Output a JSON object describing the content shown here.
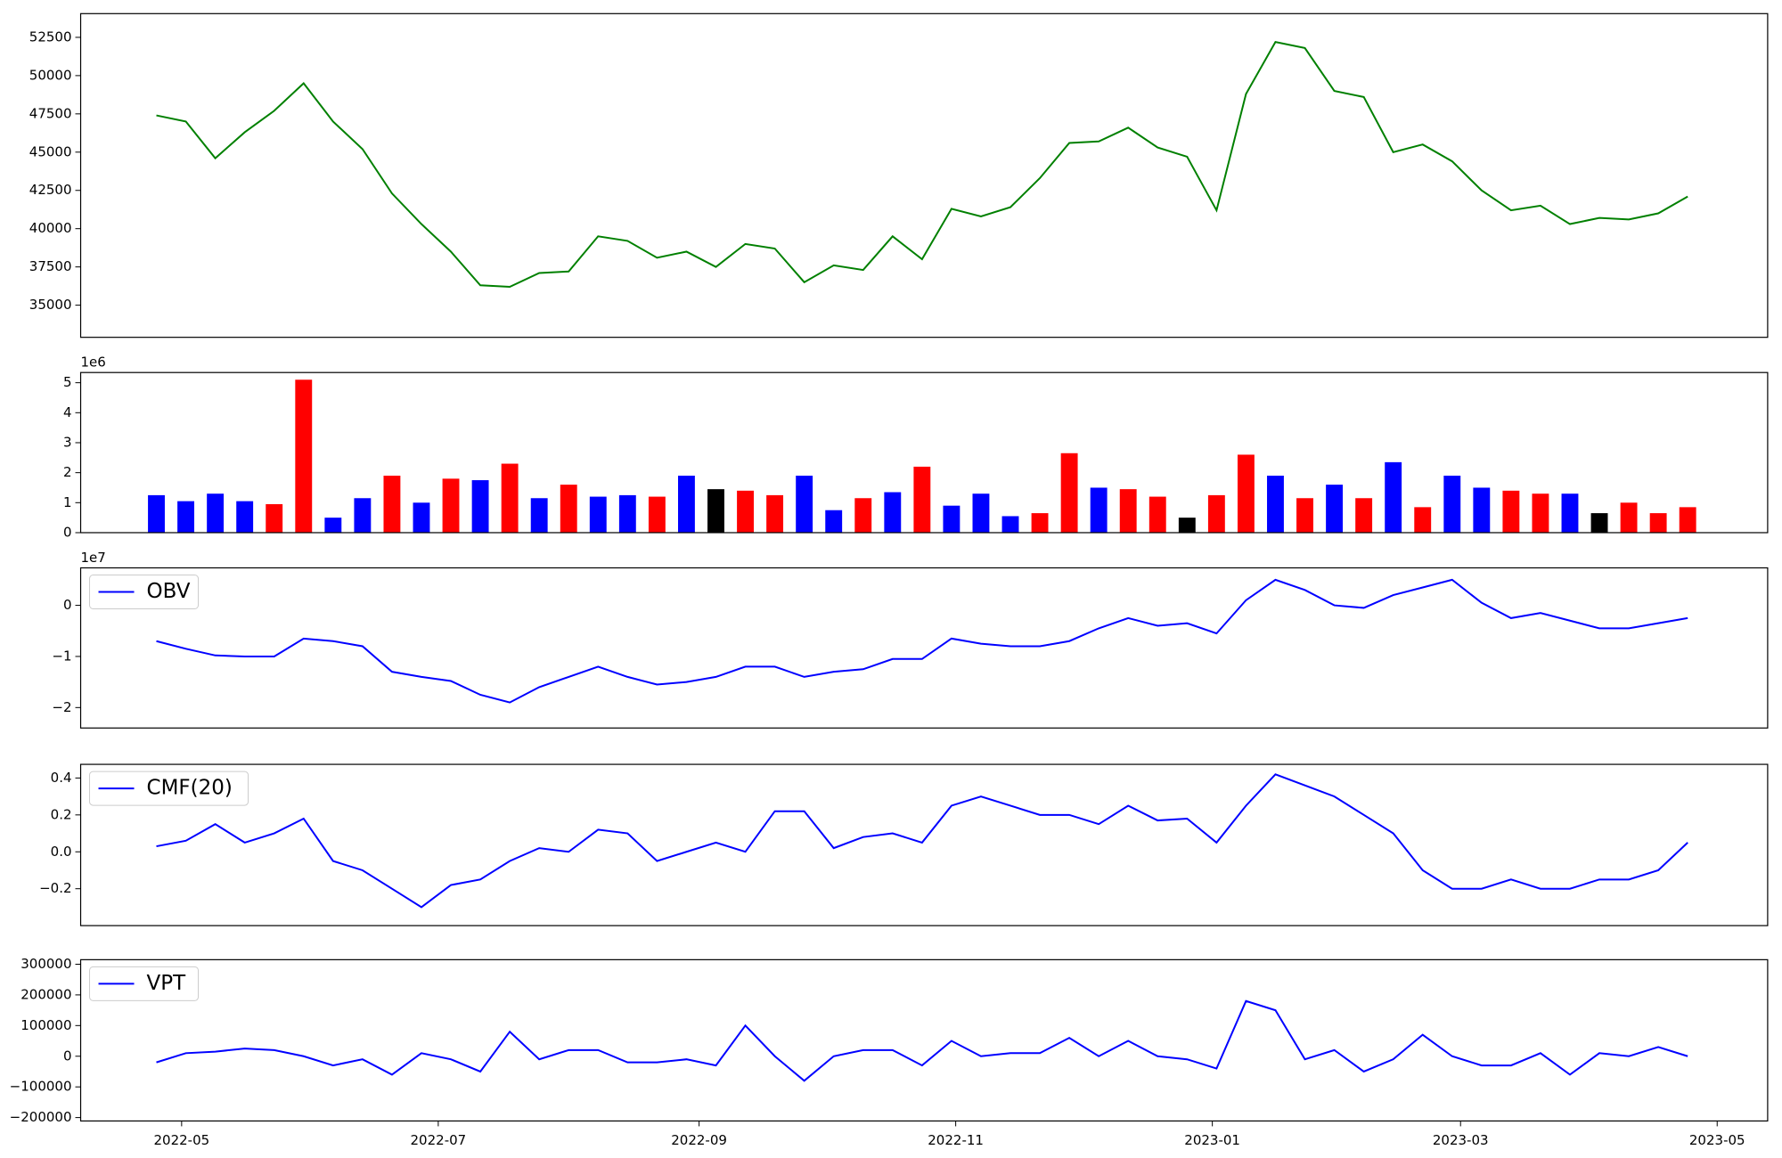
{
  "chart_data": [
    {
      "type": "line",
      "color": "#008000",
      "x": [
        "2022-04-25",
        "2022-05-02",
        "2022-05-09",
        "2022-05-16",
        "2022-05-23",
        "2022-05-30",
        "2022-06-06",
        "2022-06-13",
        "2022-06-20",
        "2022-06-27",
        "2022-07-04",
        "2022-07-11",
        "2022-07-18",
        "2022-07-25",
        "2022-08-01",
        "2022-08-08",
        "2022-08-15",
        "2022-08-22",
        "2022-08-29",
        "2022-09-05",
        "2022-09-12",
        "2022-09-19",
        "2022-09-26",
        "2022-10-03",
        "2022-10-10",
        "2022-10-17",
        "2022-10-24",
        "2022-10-31",
        "2022-11-07",
        "2022-11-14",
        "2022-11-21",
        "2022-11-28",
        "2022-12-05",
        "2022-12-12",
        "2022-12-19",
        "2022-12-26",
        "2023-01-02",
        "2023-01-09",
        "2023-01-16",
        "2023-01-23",
        "2023-01-30",
        "2023-02-06",
        "2023-02-13",
        "2023-02-20",
        "2023-02-27",
        "2023-03-06",
        "2023-03-13",
        "2023-03-20",
        "2023-03-27",
        "2023-04-03",
        "2023-04-10",
        "2023-04-17",
        "2023-04-24"
      ],
      "values": [
        47400,
        47000,
        44600,
        46300,
        47700,
        49500,
        47000,
        45200,
        42300,
        40300,
        38500,
        36300,
        36200,
        37100,
        37200,
        39500,
        39200,
        38100,
        38500,
        37500,
        39000,
        38700,
        36500,
        37600,
        37300,
        39500,
        38000,
        41300,
        40800,
        41400,
        43300,
        45600,
        45700,
        46600,
        45300,
        44700,
        41200,
        48800,
        52200,
        51800,
        49000,
        48600,
        45000,
        45500,
        44400,
        42500,
        41200,
        41500,
        40300,
        40700,
        40600,
        41000,
        42100
      ],
      "xlim": [
        "2022-04-07",
        "2023-05-13"
      ],
      "ylim": [
        32900,
        54050
      ],
      "yticks": [
        35000,
        37500,
        40000,
        42500,
        45000,
        47500,
        50000,
        52500
      ]
    },
    {
      "type": "bar",
      "offset_label": "1e6",
      "x": [
        "2022-04-25",
        "2022-05-02",
        "2022-05-09",
        "2022-05-16",
        "2022-05-23",
        "2022-05-30",
        "2022-06-06",
        "2022-06-13",
        "2022-06-20",
        "2022-06-27",
        "2022-07-04",
        "2022-07-11",
        "2022-07-18",
        "2022-07-25",
        "2022-08-01",
        "2022-08-08",
        "2022-08-15",
        "2022-08-22",
        "2022-08-29",
        "2022-09-05",
        "2022-09-12",
        "2022-09-19",
        "2022-09-26",
        "2022-10-03",
        "2022-10-10",
        "2022-10-17",
        "2022-10-24",
        "2022-10-31",
        "2022-11-07",
        "2022-11-14",
        "2022-11-21",
        "2022-11-28",
        "2022-12-05",
        "2022-12-12",
        "2022-12-19",
        "2022-12-26",
        "2023-01-02",
        "2023-01-09",
        "2023-01-16",
        "2023-01-23",
        "2023-01-30",
        "2023-02-06",
        "2023-02-13",
        "2023-02-20",
        "2023-02-27",
        "2023-03-06",
        "2023-03-13",
        "2023-03-20",
        "2023-03-27",
        "2023-04-03",
        "2023-04-10",
        "2023-04-17",
        "2023-04-24"
      ],
      "values": [
        1250000,
        1050000,
        1300000,
        1050000,
        950000,
        5100000,
        500000,
        1150000,
        1900000,
        1000000,
        1800000,
        1750000,
        2300000,
        1150000,
        1600000,
        1200000,
        1250000,
        1200000,
        1900000,
        1450000,
        1400000,
        1250000,
        1900000,
        750000,
        1150000,
        1350000,
        2200000,
        900000,
        1300000,
        550000,
        650000,
        2650000,
        1500000,
        1450000,
        1200000,
        500000,
        1250000,
        2600000,
        1900000,
        1150000,
        1600000,
        1150000,
        2350000,
        850000,
        1900000,
        1500000,
        1400000,
        1300000,
        1300000,
        650000,
        1000000,
        650000,
        850000
      ],
      "colors": [
        "blue",
        "blue",
        "blue",
        "blue",
        "red",
        "red",
        "blue",
        "blue",
        "red",
        "blue",
        "red",
        "blue",
        "red",
        "blue",
        "red",
        "blue",
        "blue",
        "red",
        "blue",
        "black",
        "red",
        "red",
        "blue",
        "blue",
        "red",
        "blue",
        "red",
        "blue",
        "blue",
        "blue",
        "red",
        "red",
        "blue",
        "red",
        "red",
        "black",
        "red",
        "red",
        "blue",
        "red",
        "blue",
        "red",
        "blue",
        "red",
        "blue",
        "blue",
        "red",
        "red",
        "blue",
        "black",
        "red",
        "red",
        "red"
      ],
      "xlim": [
        "2022-04-07",
        "2023-05-13"
      ],
      "ylim": [
        0,
        5340000
      ],
      "yticks": [
        0,
        {
          "value": 1000000,
          "label": "1"
        },
        {
          "value": 2000000,
          "label": "2"
        },
        {
          "value": 3000000,
          "label": "3"
        },
        {
          "value": 4000000,
          "label": "4"
        },
        {
          "value": 5000000,
          "label": "5"
        }
      ]
    },
    {
      "type": "line",
      "offset_label": "1e7",
      "legend": "upper left",
      "x": [
        "2022-04-25",
        "2022-05-02",
        "2022-05-09",
        "2022-05-16",
        "2022-05-23",
        "2022-05-30",
        "2022-06-06",
        "2022-06-13",
        "2022-06-20",
        "2022-06-27",
        "2022-07-04",
        "2022-07-11",
        "2022-07-18",
        "2022-07-25",
        "2022-08-01",
        "2022-08-08",
        "2022-08-15",
        "2022-08-22",
        "2022-08-29",
        "2022-09-05",
        "2022-09-12",
        "2022-09-19",
        "2022-09-26",
        "2022-10-03",
        "2022-10-10",
        "2022-10-17",
        "2022-10-24",
        "2022-10-31",
        "2022-11-07",
        "2022-11-14",
        "2022-11-21",
        "2022-11-28",
        "2022-12-05",
        "2022-12-12",
        "2022-12-19",
        "2022-12-26",
        "2023-01-02",
        "2023-01-09",
        "2023-01-16",
        "2023-01-23",
        "2023-01-30",
        "2023-02-06",
        "2023-02-13",
        "2023-02-20",
        "2023-02-27",
        "2023-03-06",
        "2023-03-13",
        "2023-03-20",
        "2023-03-27",
        "2023-04-03",
        "2023-04-10",
        "2023-04-17",
        "2023-04-24"
      ],
      "series": [
        {
          "name": "OBV",
          "color": "#0000ff",
          "values": [
            -7000000,
            -8500000,
            -9800000,
            -10000000,
            -10000000,
            -6500000,
            -7000000,
            -8000000,
            -13000000,
            -14000000,
            -14800000,
            -17500000,
            -19000000,
            -16000000,
            -14000000,
            -12000000,
            -14000000,
            -15500000,
            -15000000,
            -14000000,
            -12000000,
            -12000000,
            -14000000,
            -13000000,
            -12500000,
            -10500000,
            -10500000,
            -6500000,
            -7500000,
            -8000000,
            -8000000,
            -7000000,
            -4500000,
            -2500000,
            -4000000,
            -3500000,
            -5500000,
            1000000,
            5000000,
            3000000,
            0,
            -500000,
            2000000,
            3500000,
            5000000,
            500000,
            -2500000,
            -1500000,
            -3000000,
            -4500000,
            -4500000,
            -3500000,
            -2500000
          ]
        }
      ],
      "xlim": [
        "2022-04-07",
        "2023-05-13"
      ],
      "ylim": [
        -24000000,
        7330000
      ],
      "yticks": [
        {
          "value": -20000000,
          "label": "−2"
        },
        {
          "value": -10000000,
          "label": "−1"
        },
        0
      ]
    },
    {
      "type": "line",
      "legend": "upper left",
      "x": [
        "2022-04-25",
        "2022-05-02",
        "2022-05-09",
        "2022-05-16",
        "2022-05-23",
        "2022-05-30",
        "2022-06-06",
        "2022-06-13",
        "2022-06-20",
        "2022-06-27",
        "2022-07-04",
        "2022-07-11",
        "2022-07-18",
        "2022-07-25",
        "2022-08-01",
        "2022-08-08",
        "2022-08-15",
        "2022-08-22",
        "2022-08-29",
        "2022-09-05",
        "2022-09-12",
        "2022-09-19",
        "2022-09-26",
        "2022-10-03",
        "2022-10-10",
        "2022-10-17",
        "2022-10-24",
        "2022-10-31",
        "2022-11-07",
        "2022-11-14",
        "2022-11-21",
        "2022-11-28",
        "2022-12-05",
        "2022-12-12",
        "2022-12-19",
        "2022-12-26",
        "2023-01-02",
        "2023-01-09",
        "2023-01-16",
        "2023-01-23",
        "2023-01-30",
        "2023-02-06",
        "2023-02-13",
        "2023-02-20",
        "2023-02-27",
        "2023-03-06",
        "2023-03-13",
        "2023-03-20",
        "2023-03-27",
        "2023-04-03",
        "2023-04-10",
        "2023-04-17",
        "2023-04-24"
      ],
      "series": [
        {
          "name": "CMF(20)",
          "color": "#0000ff",
          "values": [
            0.03,
            0.06,
            0.15,
            0.05,
            0.1,
            0.18,
            -0.05,
            -0.1,
            -0.2,
            -0.3,
            -0.18,
            -0.15,
            -0.05,
            0.02,
            0.0,
            0.12,
            0.1,
            -0.05,
            0.0,
            0.05,
            0.0,
            0.22,
            0.22,
            0.02,
            0.08,
            0.1,
            0.05,
            0.25,
            0.3,
            0.25,
            0.2,
            0.2,
            0.15,
            0.25,
            0.17,
            0.18,
            0.05,
            0.25,
            0.42,
            0.36,
            0.3,
            0.2,
            0.1,
            -0.1,
            -0.2,
            -0.2,
            -0.15,
            -0.2,
            -0.2,
            -0.15,
            -0.15,
            -0.1,
            0.05
          ]
        }
      ],
      "xlim": [
        "2022-04-07",
        "2023-05-13"
      ],
      "ylim": [
        -0.4,
        0.474
      ],
      "yticks": [
        {
          "value": -0.2,
          "label": "−0.2"
        },
        {
          "value": 0,
          "label": "0.0"
        },
        0.2,
        0.4
      ]
    },
    {
      "type": "line",
      "legend": "upper left",
      "x": [
        "2022-04-25",
        "2022-05-02",
        "2022-05-09",
        "2022-05-16",
        "2022-05-23",
        "2022-05-30",
        "2022-06-06",
        "2022-06-13",
        "2022-06-20",
        "2022-06-27",
        "2022-07-04",
        "2022-07-11",
        "2022-07-18",
        "2022-07-25",
        "2022-08-01",
        "2022-08-08",
        "2022-08-15",
        "2022-08-22",
        "2022-08-29",
        "2022-09-05",
        "2022-09-12",
        "2022-09-19",
        "2022-09-26",
        "2022-10-03",
        "2022-10-10",
        "2022-10-17",
        "2022-10-24",
        "2022-10-31",
        "2022-11-07",
        "2022-11-14",
        "2022-11-21",
        "2022-11-28",
        "2022-12-05",
        "2022-12-12",
        "2022-12-19",
        "2022-12-26",
        "2023-01-02",
        "2023-01-09",
        "2023-01-16",
        "2023-01-23",
        "2023-01-30",
        "2023-02-06",
        "2023-02-13",
        "2023-02-20",
        "2023-02-27",
        "2023-03-06",
        "2023-03-13",
        "2023-03-20",
        "2023-03-27",
        "2023-04-03",
        "2023-04-10",
        "2023-04-17",
        "2023-04-24"
      ],
      "series": [
        {
          "name": "VPT",
          "color": "#0000ff",
          "values": [
            -20000,
            10000,
            15000,
            25000,
            20000,
            0,
            -30000,
            -10000,
            -60000,
            10000,
            -10000,
            -50000,
            80000,
            -10000,
            20000,
            20000,
            -20000,
            -20000,
            -10000,
            -30000,
            100000,
            0,
            -80000,
            0,
            20000,
            20000,
            -30000,
            50000,
            0,
            10000,
            10000,
            60000,
            0,
            50000,
            0,
            -10000,
            -40000,
            180000,
            150000,
            -10000,
            20000,
            -50000,
            -10000,
            70000,
            0,
            -30000,
            -30000,
            10000,
            -60000,
            10000,
            0,
            30000,
            0
          ]
        }
      ],
      "xlim": [
        "2022-04-07",
        "2023-05-13"
      ],
      "ylim": [
        -211100,
        314800
      ],
      "yticks": [
        {
          "value": -200000,
          "label": "−200000"
        },
        {
          "value": -100000,
          "label": "−100000"
        },
        0,
        100000,
        200000,
        300000
      ],
      "xticks": [
        {
          "value": "2022-05-01",
          "label": "2022-05"
        },
        {
          "value": "2022-07-01",
          "label": "2022-07"
        },
        {
          "value": "2022-09-01",
          "label": "2022-09"
        },
        {
          "value": "2022-11-01",
          "label": "2022-11"
        },
        {
          "value": "2023-01-01",
          "label": "2023-01"
        },
        {
          "value": "2023-03-01",
          "label": "2023-03"
        },
        {
          "value": "2023-05-01",
          "label": "2023-05"
        }
      ]
    }
  ]
}
